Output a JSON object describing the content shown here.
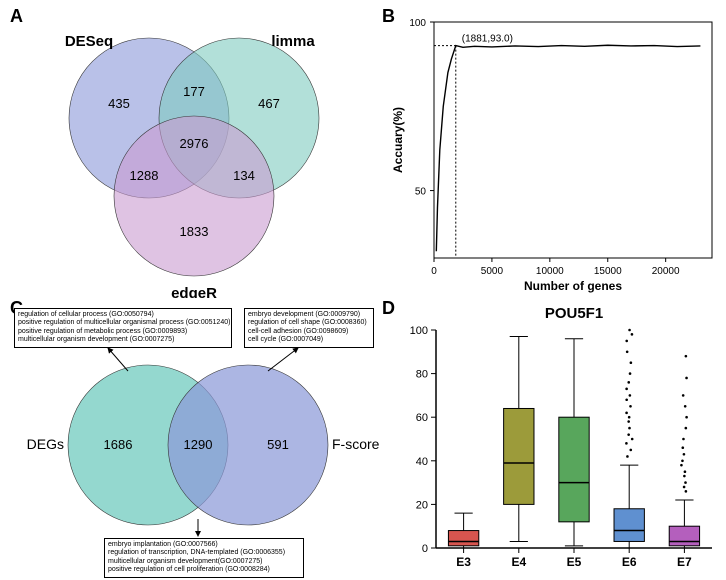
{
  "panels": {
    "A": "A",
    "B": "B",
    "C": "C",
    "D": "D"
  },
  "venn_a": {
    "labels": {
      "deseq": "DESeq",
      "limma": "limma",
      "edger": "edgeR"
    },
    "counts": {
      "deseq_only": "435",
      "limma_only": "467",
      "edger_only": "1833",
      "deseq_limma": "177",
      "deseq_edger": "1288",
      "limma_edger": "134",
      "all": "2976"
    },
    "colors": {
      "deseq": "#8b98d9",
      "limma": "#7ecbc0",
      "edger": "#c99bd1",
      "bg": "#ffffff"
    }
  },
  "line_b": {
    "xlabel": "Number of genes",
    "ylabel": "Accuary(%)",
    "annotation": "(1881,93.0)",
    "xlim": [
      0,
      24000
    ],
    "xticks": [
      0,
      5000,
      10000,
      15000,
      20000
    ],
    "ylim": [
      30,
      100
    ],
    "yticks": [
      50,
      100
    ],
    "marker_x": 1881,
    "marker_y": 93.0,
    "line_color": "#000000",
    "bg": "#ffffff",
    "curve": [
      [
        200,
        32
      ],
      [
        300,
        45
      ],
      [
        500,
        62
      ],
      [
        800,
        75
      ],
      [
        1200,
        85
      ],
      [
        1500,
        89
      ],
      [
        1881,
        93
      ],
      [
        2500,
        92.5
      ],
      [
        3500,
        92.8
      ],
      [
        5000,
        92.6
      ],
      [
        7000,
        92.9
      ],
      [
        9000,
        92.7
      ],
      [
        11000,
        93.0
      ],
      [
        13000,
        92.8
      ],
      [
        15000,
        93.1
      ],
      [
        17000,
        92.9
      ],
      [
        19000,
        93.0
      ],
      [
        21000,
        92.7
      ],
      [
        23000,
        92.9
      ]
    ]
  },
  "venn_c": {
    "labels": {
      "degs": "DEGs",
      "fscore": "F-score"
    },
    "counts": {
      "degs_only": "1686",
      "fscore_only": "591",
      "overlap": "1290"
    },
    "colors": {
      "degs": "#6bc9bd",
      "fscore": "#8c9ad8",
      "bg": "#ffffff"
    },
    "go_degs": [
      "regulation of cellular process (GO:0050794)",
      "positive regulation of multicellular organismal process (GO:0051240)",
      "positive regulation of metabolic process (GO:0009893)",
      "multicellular organism development (GO:0007275)"
    ],
    "go_fscore": [
      "embryo development (GO:0009790)",
      "regulation of cell shape (GO:0008360)",
      "cell-cell adhesion (GO:0098609)",
      "cell cycle (GO:0007049)"
    ],
    "go_overlap": [
      "embryo implantation (GO:0007566)",
      "regulation of transcription, DNA-templated (GO:0006355)",
      "multicellular organism development(GO:0007275)",
      "positive regulation of cell proliferation (GO:0008284)"
    ]
  },
  "box_d": {
    "title": "POU5F1",
    "categories": [
      "E3",
      "E4",
      "E5",
      "E6",
      "E7"
    ],
    "ylim": [
      0,
      100
    ],
    "yticks": [
      0,
      20,
      40,
      60,
      80,
      100
    ],
    "colors": [
      "#d7554f",
      "#9c9b3a",
      "#58a65c",
      "#5f90d0",
      "#b45fbd"
    ],
    "bg": "#ffffff",
    "boxes": [
      {
        "q1": 1,
        "median": 3,
        "q3": 8,
        "wlow": 0,
        "whigh": 16,
        "outliers": []
      },
      {
        "q1": 20,
        "median": 39,
        "q3": 64,
        "wlow": 3,
        "whigh": 97,
        "outliers": []
      },
      {
        "q1": 12,
        "median": 30,
        "q3": 60,
        "wlow": 1,
        "whigh": 96,
        "outliers": []
      },
      {
        "q1": 3,
        "median": 8,
        "q3": 18,
        "wlow": 0,
        "whigh": 38,
        "outliers": [
          42,
          45,
          48,
          50,
          52,
          55,
          58,
          60,
          62,
          65,
          68,
          70,
          73,
          76,
          80,
          85,
          90,
          95,
          98,
          100
        ]
      },
      {
        "q1": 1,
        "median": 3,
        "q3": 10,
        "wlow": 0,
        "whigh": 22,
        "outliers": [
          26,
          28,
          30,
          33,
          35,
          38,
          40,
          43,
          46,
          50,
          55,
          60,
          65,
          70,
          78,
          88
        ]
      }
    ]
  }
}
